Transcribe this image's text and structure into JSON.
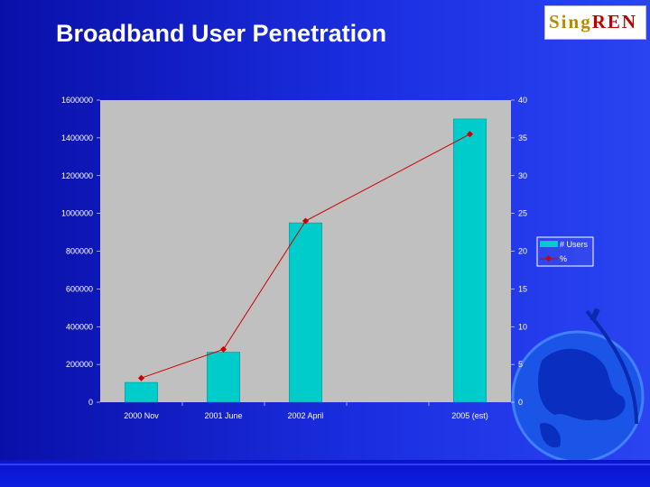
{
  "slide": {
    "title": "Broadband User Penetration"
  },
  "logo": {
    "text_a": "Sing",
    "text_b": "REN",
    "colors": {
      "sing": "#b78a00",
      "ren": "#c00000"
    }
  },
  "chart_data": {
    "type": "bar",
    "categories": [
      "2000 Nov",
      "2001 June",
      "2002 April",
      "",
      "2005 (est)"
    ],
    "series": [
      {
        "name": "# Users",
        "type": "bar",
        "axis": "left",
        "color": "#00cccc",
        "values": [
          105000,
          265000,
          950000,
          null,
          1500000
        ]
      },
      {
        "name": "%",
        "type": "line",
        "axis": "right",
        "color": "#cc0000",
        "values": [
          3.2,
          7.0,
          24.0,
          null,
          35.5
        ]
      }
    ],
    "y_left": {
      "min": 0,
      "max": 1600000,
      "ticks": [
        "0",
        "200000",
        "400000",
        "600000",
        "800000",
        "1000000",
        "1200000",
        "1400000",
        "1600000"
      ]
    },
    "y_right": {
      "min": 0,
      "max": 40,
      "ticks": [
        "0",
        "5",
        "10",
        "15",
        "20",
        "25",
        "30",
        "35",
        "40"
      ]
    },
    "legend": {
      "position": "right",
      "entries": [
        "# Users",
        "%"
      ]
    },
    "plot_background": "#c0c0c0",
    "grid": false
  }
}
